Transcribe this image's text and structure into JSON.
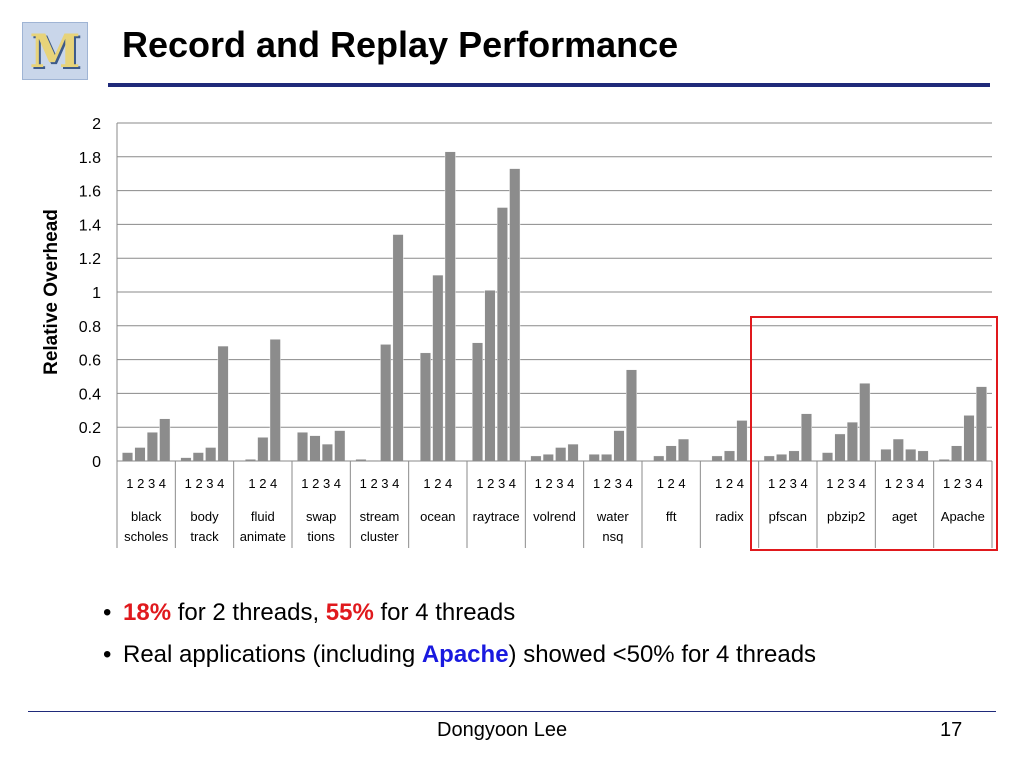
{
  "slide": {
    "title": "Record and Replay Performance",
    "author": "Dongyoon Lee",
    "page_number": "17",
    "logo_letter": "M"
  },
  "bullets": [
    {
      "parts": [
        {
          "text": "18%",
          "style": "red"
        },
        {
          "text": " for 2 threads, ",
          "style": ""
        },
        {
          "text": "55%",
          "style": "red"
        },
        {
          "text": " for 4 threads",
          "style": ""
        }
      ]
    },
    {
      "parts": [
        {
          "text": "Real applications (including ",
          "style": ""
        },
        {
          "text": "Apache",
          "style": "blue"
        },
        {
          "text": ") showed <50% for 4 threads",
          "style": ""
        }
      ]
    }
  ],
  "colors": {
    "bar": "#8c8c8c",
    "bar_stroke": "#ffffff",
    "title_rule": "#1f2a7a",
    "highlight": "#e0191d",
    "accent_red": "#e0191d",
    "accent_blue": "#1a1adf"
  },
  "chart_data": {
    "type": "bar",
    "ylabel": "Relative Overhead",
    "ylim": [
      0,
      2
    ],
    "yticks": [
      "0",
      "0.2",
      "0.4",
      "0.6",
      "0.8",
      "1",
      "1.2",
      "1.4",
      "1.6",
      "1.8",
      "2"
    ],
    "grid": true,
    "highlighted_groups": [
      "pfscan",
      "pbzip2",
      "aget",
      "Apache"
    ],
    "groups": [
      {
        "label": [
          "black",
          "scholes"
        ],
        "threads": [
          "1",
          "2",
          "3",
          "4"
        ],
        "values": [
          0.05,
          0.08,
          0.17,
          0.25
        ]
      },
      {
        "label": [
          "body",
          "track"
        ],
        "threads": [
          "1",
          "2",
          "3",
          "4"
        ],
        "values": [
          0.02,
          0.05,
          0.08,
          0.68
        ]
      },
      {
        "label": [
          "fluid",
          "animate"
        ],
        "threads": [
          "1",
          "2",
          "4"
        ],
        "values": [
          0.01,
          0.14,
          0.72
        ]
      },
      {
        "label": [
          "swap",
          "tions"
        ],
        "threads": [
          "1",
          "2",
          "3",
          "4"
        ],
        "values": [
          0.17,
          0.15,
          0.1,
          0.18
        ]
      },
      {
        "label": [
          "stream",
          "cluster"
        ],
        "threads": [
          "1",
          "2",
          "3",
          "4"
        ],
        "values": [
          0.01,
          0.0,
          0.69,
          1.34
        ]
      },
      {
        "label": [
          "ocean"
        ],
        "threads": [
          "1",
          "2",
          "4"
        ],
        "values": [
          0.64,
          1.1,
          1.83
        ]
      },
      {
        "label": [
          "raytrace"
        ],
        "threads": [
          "1",
          "2",
          "3",
          "4"
        ],
        "values": [
          0.7,
          1.01,
          1.5,
          1.73
        ]
      },
      {
        "label": [
          "volrend"
        ],
        "threads": [
          "1",
          "2",
          "3",
          "4"
        ],
        "values": [
          0.03,
          0.04,
          0.08,
          0.1
        ]
      },
      {
        "label": [
          "water",
          "nsq"
        ],
        "threads": [
          "1",
          "2",
          "3",
          "4"
        ],
        "values": [
          0.04,
          0.04,
          0.18,
          0.54
        ]
      },
      {
        "label": [
          "fft"
        ],
        "threads": [
          "1",
          "2",
          "4"
        ],
        "values": [
          0.03,
          0.09,
          0.13
        ]
      },
      {
        "label": [
          "radix"
        ],
        "threads": [
          "1",
          "2",
          "4"
        ],
        "values": [
          0.03,
          0.06,
          0.24
        ]
      },
      {
        "label": [
          "pfscan"
        ],
        "threads": [
          "1",
          "2",
          "3",
          "4"
        ],
        "values": [
          0.03,
          0.04,
          0.06,
          0.28
        ]
      },
      {
        "label": [
          "pbzip2"
        ],
        "threads": [
          "1",
          "2",
          "3",
          "4"
        ],
        "values": [
          0.05,
          0.16,
          0.23,
          0.46
        ]
      },
      {
        "label": [
          "aget"
        ],
        "threads": [
          "1",
          "2",
          "3",
          "4"
        ],
        "values": [
          0.07,
          0.13,
          0.07,
          0.06
        ]
      },
      {
        "label": [
          "Apache"
        ],
        "threads": [
          "1",
          "2",
          "3",
          "4"
        ],
        "values": [
          0.01,
          0.09,
          0.27,
          0.44
        ]
      }
    ]
  }
}
